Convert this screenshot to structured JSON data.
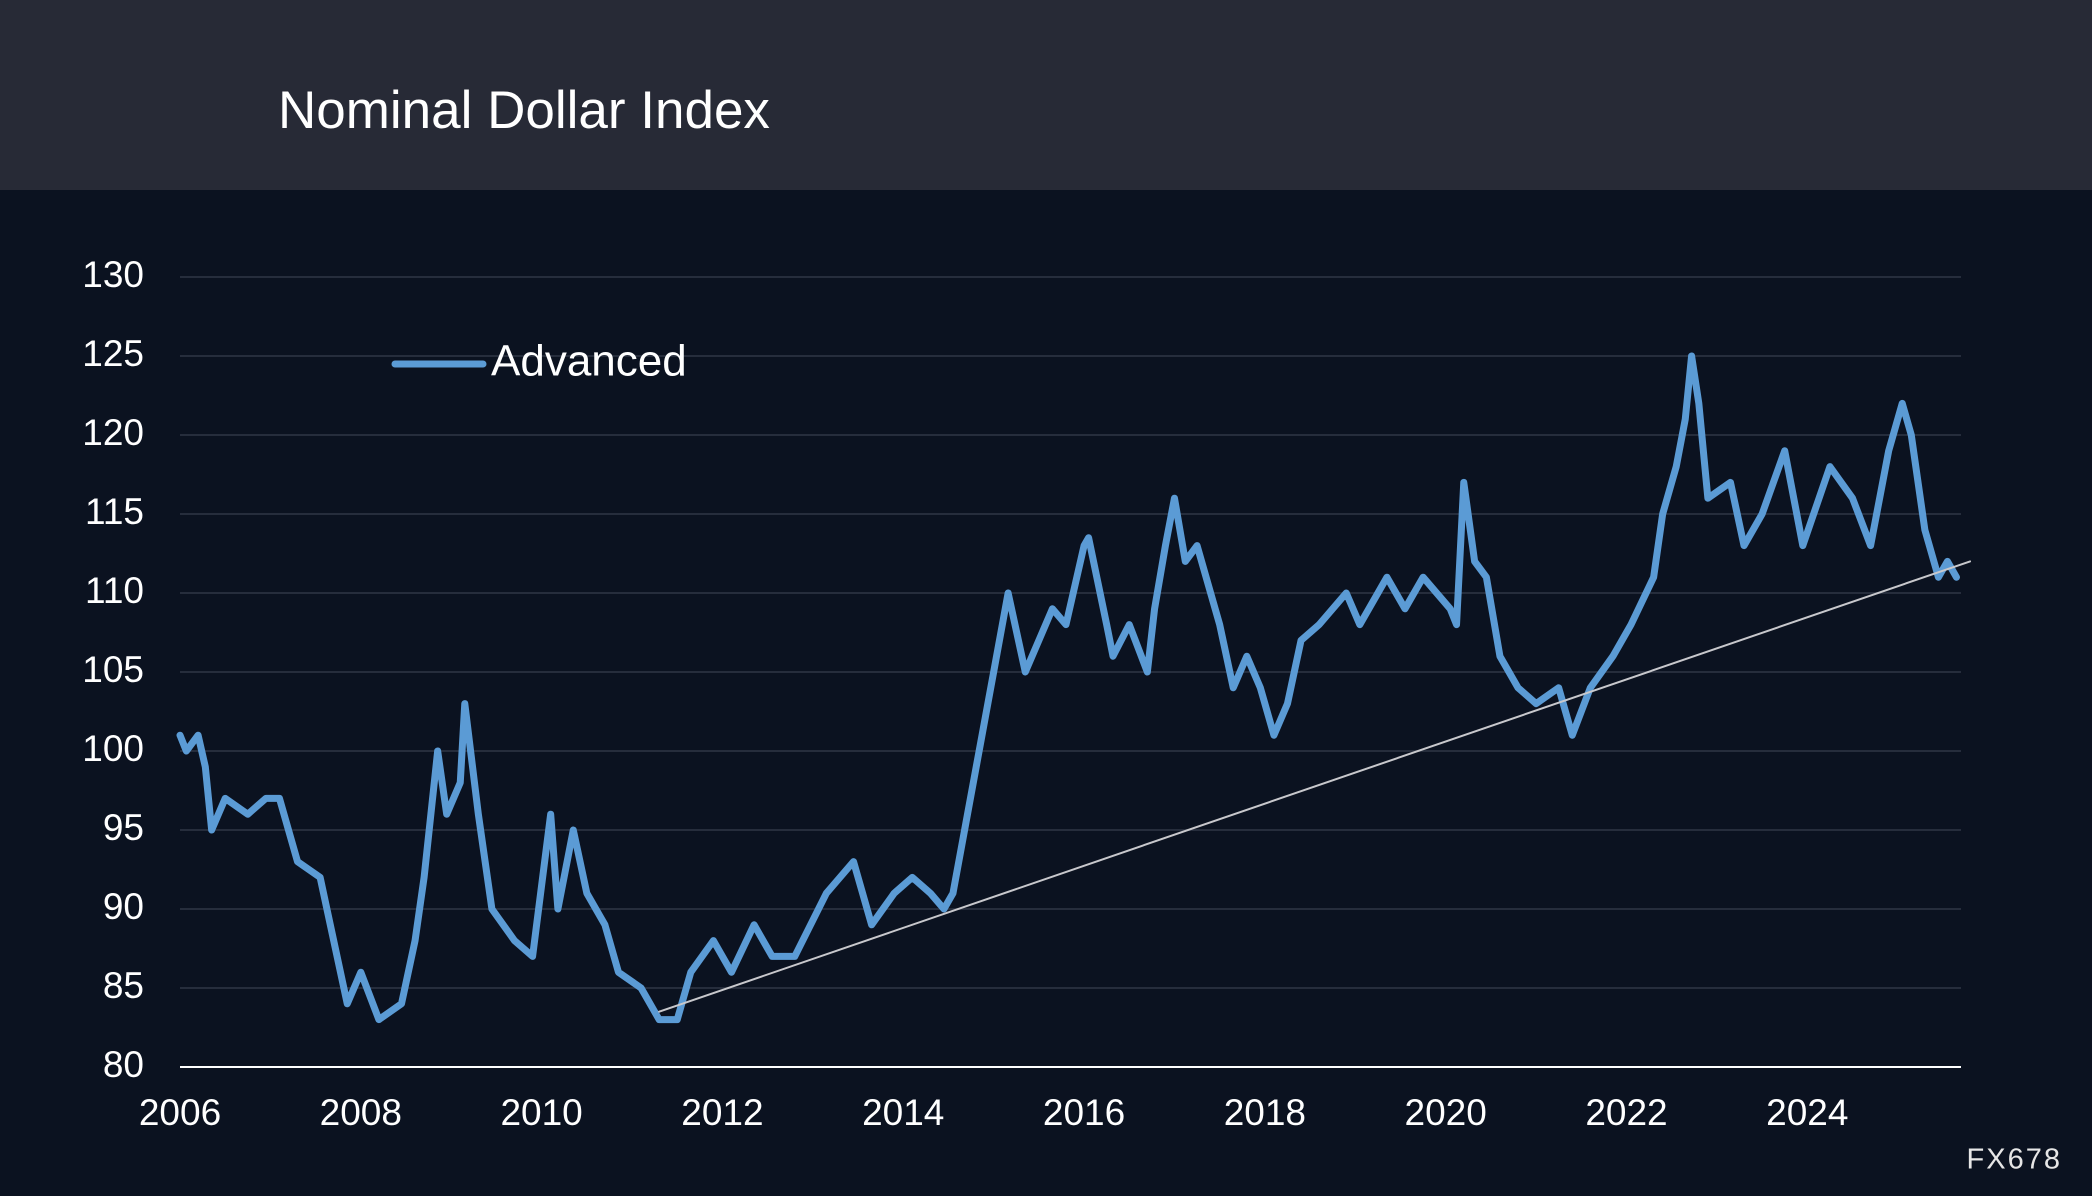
{
  "chart_data": {
    "type": "line",
    "title": "Nominal Dollar Index",
    "watermark": "FX678",
    "legend": "upper left",
    "grid": true,
    "xlim": [
      2006,
      2025.7
    ],
    "xticks": [
      2006,
      2008,
      2010,
      2012,
      2014,
      2016,
      2018,
      2020,
      2022,
      2024
    ],
    "ylim": [
      80,
      130
    ],
    "yticks": [
      80,
      85,
      90,
      95,
      100,
      105,
      110,
      115,
      120,
      125,
      130
    ],
    "x": [
      2006.0,
      2006.07,
      2006.2,
      2006.28,
      2006.35,
      2006.5,
      2006.75,
      2006.95,
      2007.1,
      2007.3,
      2007.55,
      2007.7,
      2007.85,
      2008.0,
      2008.2,
      2008.45,
      2008.6,
      2008.7,
      2008.85,
      2008.95,
      2009.1,
      2009.15,
      2009.3,
      2009.45,
      2009.7,
      2009.9,
      2010.1,
      2010.18,
      2010.35,
      2010.5,
      2010.7,
      2010.85,
      2011.1,
      2011.3,
      2011.5,
      2011.65,
      2011.9,
      2012.1,
      2012.35,
      2012.55,
      2012.8,
      2013.15,
      2013.45,
      2013.65,
      2013.9,
      2014.1,
      2014.3,
      2014.45,
      2014.55,
      2015.0,
      2015.16,
      2015.35,
      2015.65,
      2015.8,
      2016.0,
      2016.05,
      2016.25,
      2016.32,
      2016.5,
      2016.7,
      2016.78,
      2016.9,
      2017.0,
      2017.12,
      2017.25,
      2017.5,
      2017.65,
      2017.8,
      2017.95,
      2018.1,
      2018.25,
      2018.4,
      2018.6,
      2018.9,
      2019.05,
      2019.35,
      2019.55,
      2019.75,
      2020.05,
      2020.12,
      2020.2,
      2020.32,
      2020.45,
      2020.6,
      2020.8,
      2021.0,
      2021.25,
      2021.4,
      2021.6,
      2021.85,
      2022.05,
      2022.3,
      2022.4,
      2022.55,
      2022.65,
      2022.72,
      2022.8,
      2022.9,
      2023.15,
      2023.3,
      2023.5,
      2023.75,
      2023.95,
      2024.25,
      2024.5,
      2024.7,
      2024.9,
      2025.05,
      2025.15,
      2025.3,
      2025.45,
      2025.55,
      2025.65
    ],
    "series": [
      {
        "name": "Advanced",
        "color": "#5b9bd5",
        "values": [
          101,
          100,
          101,
          99,
          95,
          97,
          96,
          97,
          97,
          93,
          92,
          88,
          84,
          86,
          83,
          84,
          88,
          92,
          100,
          96,
          98,
          103,
          96,
          90,
          88,
          87,
          96,
          90,
          95,
          91,
          89,
          86,
          85,
          83,
          83,
          86,
          88,
          86,
          89,
          87,
          87,
          91,
          93,
          89,
          91,
          92,
          91,
          90,
          91,
          105,
          110,
          105,
          109,
          108,
          113,
          113.5,
          108,
          106,
          108,
          105,
          109,
          113,
          116,
          112,
          113,
          108,
          104,
          106,
          104,
          101,
          103,
          107,
          108,
          110,
          108,
          111,
          109,
          111,
          109,
          108,
          117,
          112,
          111,
          106,
          104,
          103,
          104,
          101,
          104,
          106,
          108,
          111,
          115,
          118,
          121,
          125,
          122,
          116,
          117,
          113,
          115,
          119,
          113,
          118,
          116,
          113,
          119,
          122,
          120,
          114,
          111,
          112,
          111
        ]
      }
    ],
    "trend_line": {
      "x": [
        2011.3,
        2025.8
      ],
      "values": [
        83.5,
        112
      ],
      "color": "#c8c8cc"
    }
  }
}
